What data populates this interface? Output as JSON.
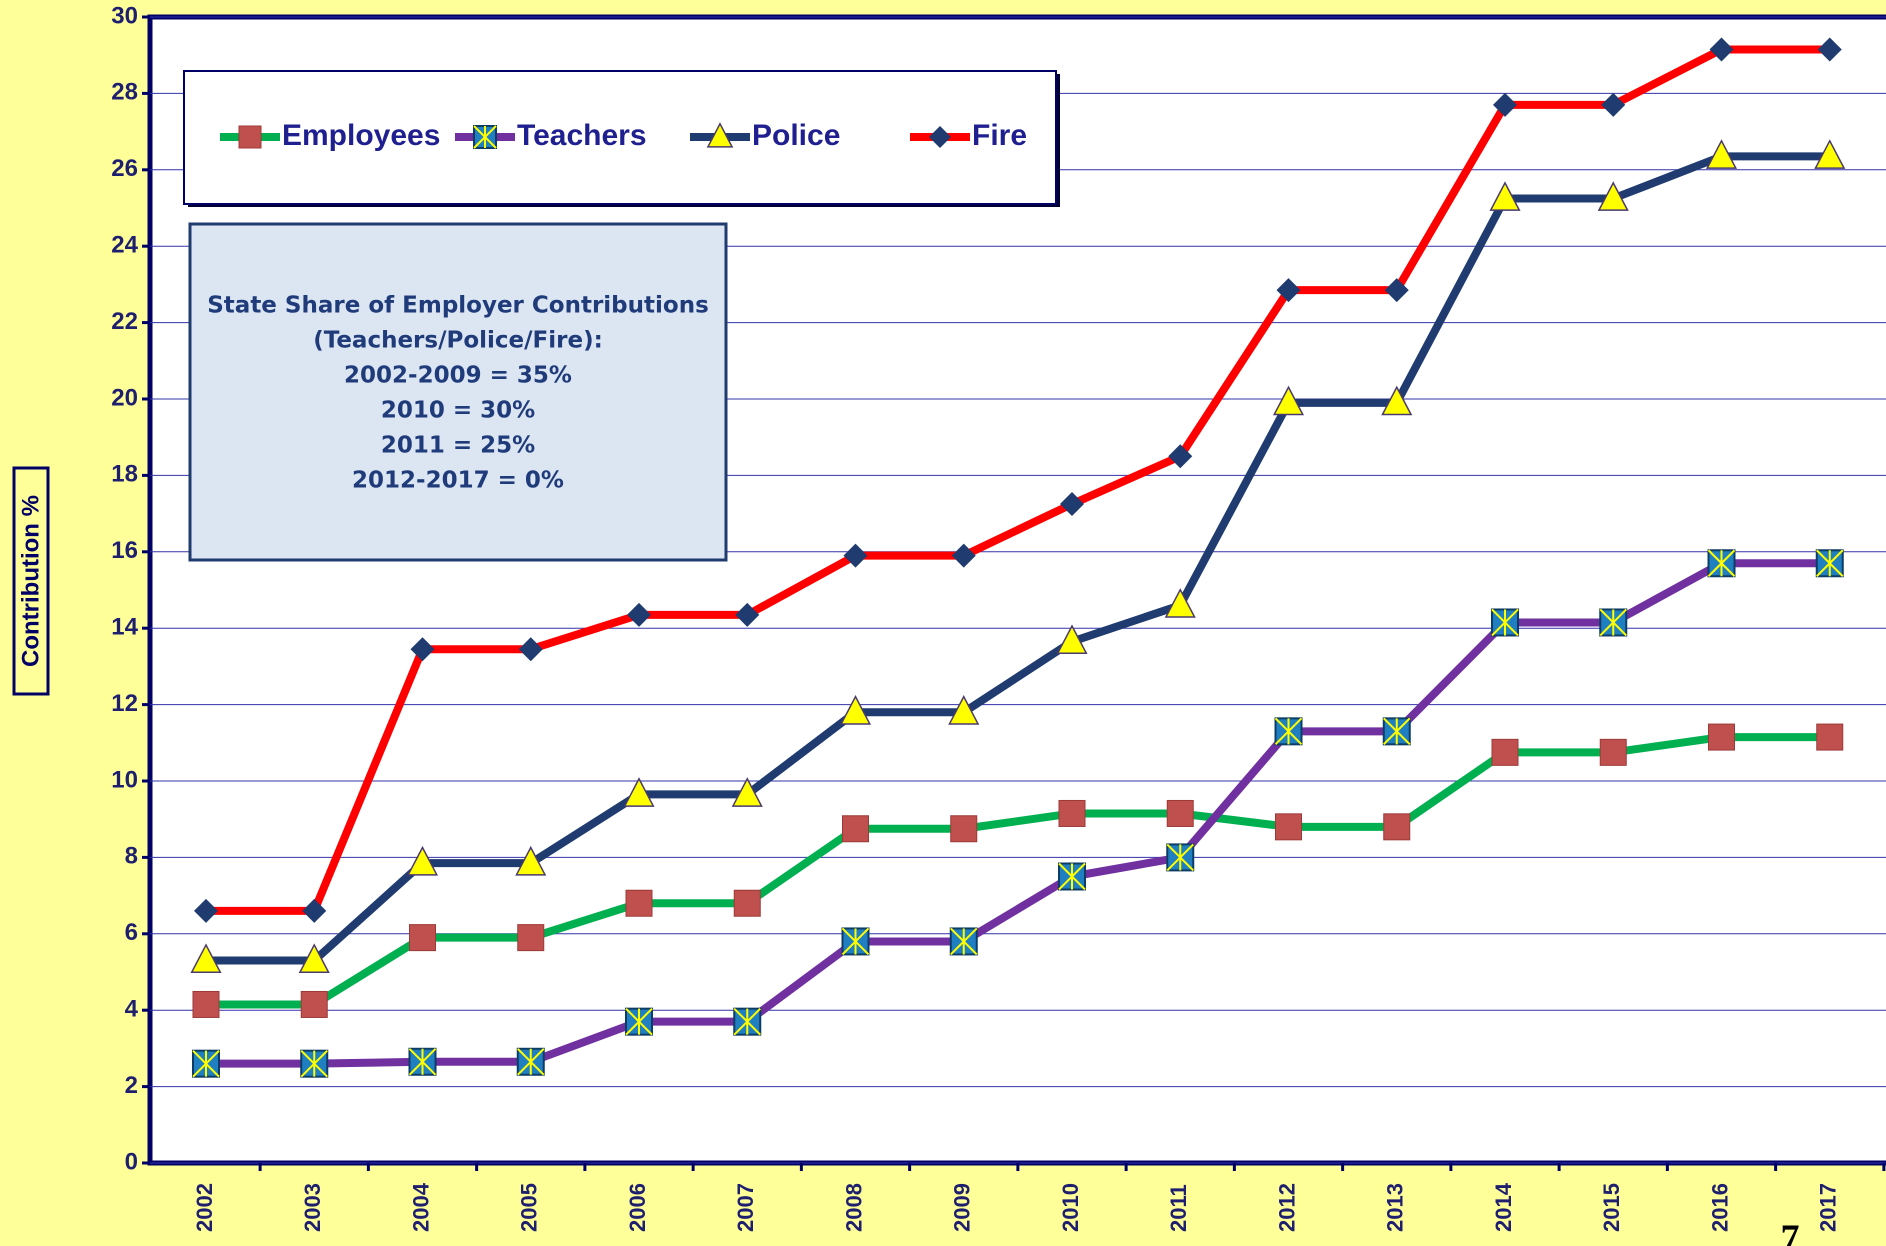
{
  "chart_data": {
    "type": "line",
    "y_label": "Contribution %",
    "categories": [
      "2002",
      "2003",
      "2004",
      "2005",
      "2006",
      "2007",
      "2008",
      "2009",
      "2010",
      "2011",
      "2012",
      "2013",
      "2014",
      "2015",
      "2016",
      "2017"
    ],
    "series": [
      {
        "name": "Employees",
        "color": "#00b050",
        "marker": "square",
        "marker_color": "#c0504d",
        "values": [
          4.15,
          4.15,
          5.9,
          5.9,
          6.8,
          6.8,
          8.75,
          8.75,
          9.15,
          9.15,
          8.8,
          8.8,
          10.75,
          10.75,
          11.15,
          11.15
        ]
      },
      {
        "name": "Teachers",
        "color": "#7030a0",
        "marker": "xsquare",
        "marker_color": "#1f7fc0",
        "values": [
          2.6,
          2.6,
          2.65,
          2.65,
          3.7,
          3.7,
          5.8,
          5.8,
          7.5,
          8.0,
          11.3,
          11.3,
          14.15,
          14.15,
          15.7,
          15.7
        ]
      },
      {
        "name": "Police",
        "color": "#1f3b6f",
        "marker": "triangle",
        "marker_color": "#ffff00",
        "values": [
          5.3,
          5.3,
          7.85,
          7.85,
          9.65,
          9.65,
          11.8,
          11.8,
          13.65,
          14.6,
          19.9,
          19.9,
          25.25,
          25.25,
          26.35,
          26.35
        ]
      },
      {
        "name": "Fire",
        "color": "#ff0000",
        "marker": "diamond",
        "marker_color": "#1f3b6f",
        "values": [
          6.6,
          6.6,
          13.45,
          13.45,
          14.35,
          14.35,
          15.9,
          15.9,
          17.25,
          18.5,
          22.85,
          22.85,
          27.7,
          27.7,
          29.15,
          29.15
        ]
      }
    ],
    "ylim": [
      0,
      30
    ],
    "yticks": [
      0,
      2,
      4,
      6,
      8,
      10,
      12,
      14,
      16,
      18,
      20,
      22,
      24,
      26,
      28,
      30
    ],
    "grid": true,
    "legend": "top-left",
    "annotation": [
      "State Share of Employer Contributions",
      "(Teachers/Police/Fire):",
      "2002-2009 = 35%",
      "2010 = 30%",
      "2011 = 25%",
      "2012-2017 = 0%"
    ],
    "page_number": "7"
  }
}
